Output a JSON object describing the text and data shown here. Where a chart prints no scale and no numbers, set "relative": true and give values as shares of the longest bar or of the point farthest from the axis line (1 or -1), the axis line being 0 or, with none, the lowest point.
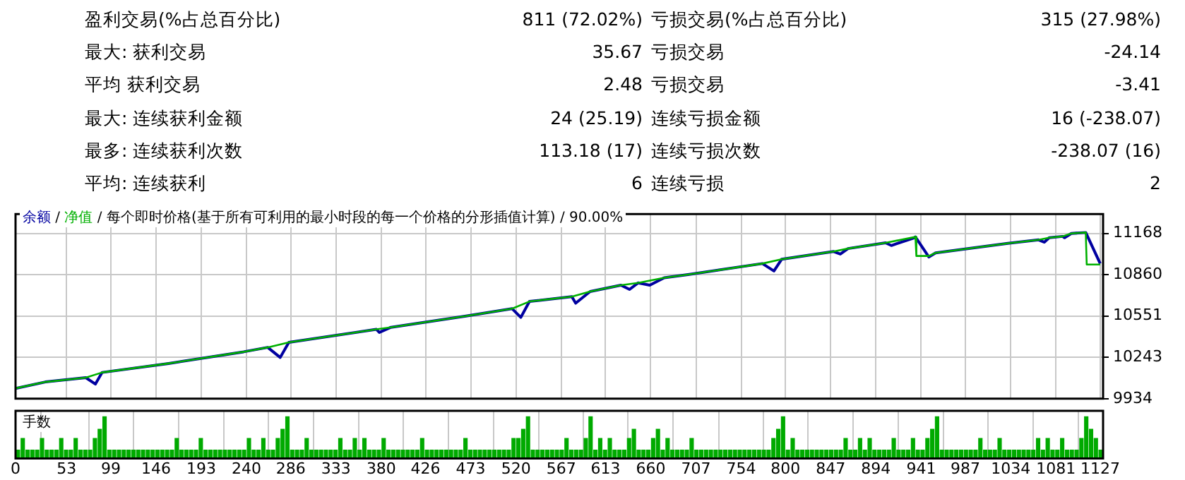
{
  "chart_data": [
    {
      "type": "other",
      "annotations": [
        "盈利交易(%占总百分比)",
        "811 (72.02%)",
        "亏损交易(%占总百分比)",
        "315 (27.98%)",
        "最大: 获利交易",
        "35.67",
        "亏损交易",
        "-24.14",
        "平均 获利交易",
        "2.48",
        "亏损交易",
        "-3.41",
        "最大: 连续获利金额",
        "24 (25.19)",
        "连续亏损金额",
        "16 (-238.07)",
        "最多: 连续获利次数",
        "113.18 (17)",
        "连续亏损次数",
        "-238.07 (16)",
        "平均: 连续获利",
        "6",
        "连续亏损",
        "2"
      ]
    },
    {
      "type": "line",
      "subtitle": "/ 每个即时价格(基于所有可利用的最小时段的每一个价格的分形插值计算) / 90.00%",
      "annotations": [
        "/"
      ],
      "legend": "top left",
      "grid": true,
      "tick_labels": "y",
      "xlim": [
        0,
        1130
      ],
      "xticks": [
        0,
        53,
        99,
        146,
        193,
        240,
        286,
        333,
        380,
        426,
        473,
        520,
        567,
        613,
        660,
        707,
        754,
        800,
        847,
        894,
        941,
        987,
        1034,
        1081,
        1127
      ],
      "ylim": [
        9934,
        11313
      ],
      "yticks": [
        9934,
        10243,
        10551,
        10860,
        11168
      ],
      "series": [
        {
          "name": "净值",
          "color": "#00b000",
          "x": [
            0,
            31,
            73,
            90,
            159,
            237,
            262,
            284,
            375,
            390,
            468,
            516,
            534,
            578,
            597,
            629,
            647,
            674,
            700,
            776,
            796,
            850,
            865,
            904,
            935,
            936,
            949,
            956,
            1031,
            1063,
            1074,
            1088,
            1097,
            1112,
            1113,
            1127
          ],
          "values": [
            10011,
            10059,
            10091,
            10130,
            10197,
            10284,
            10317,
            10355,
            10452,
            10467,
            10551,
            10606,
            10660,
            10696,
            10734,
            10782,
            10799,
            10837,
            10862,
            10943,
            10975,
            11033,
            11055,
            11098,
            11142,
            11000,
            11000,
            11023,
            11094,
            11120,
            11136,
            11146,
            11168,
            11175,
            10936,
            10936
          ]
        },
        {
          "name": "余额",
          "color": "#0000a0",
          "x": [
            0,
            31,
            73,
            83,
            90,
            159,
            237,
            262,
            275,
            284,
            375,
            378,
            390,
            468,
            516,
            525,
            534,
            578,
            582,
            597,
            629,
            638,
            647,
            659,
            674,
            700,
            776,
            788,
            796,
            850,
            857,
            865,
            904,
            910,
            934,
            935,
            949,
            956,
            1031,
            1063,
            1069,
            1074,
            1088,
            1090,
            1097,
            1112,
            1127
          ],
          "values": [
            10011,
            10059,
            10091,
            10043,
            10130,
            10197,
            10284,
            10317,
            10242,
            10355,
            10452,
            10429,
            10467,
            10551,
            10606,
            10541,
            10660,
            10696,
            10647,
            10734,
            10782,
            10750,
            10799,
            10782,
            10837,
            10862,
            10943,
            10888,
            10975,
            11033,
            11014,
            11055,
            11098,
            11078,
            11136,
            11142,
            10992,
            11023,
            11094,
            11120,
            11103,
            11136,
            11146,
            11136,
            11168,
            11175,
            10943
          ]
        }
      ]
    },
    {
      "type": "bar",
      "title": "手数",
      "relative": true,
      "grid": "x",
      "tick_labels": "x",
      "color": "#00aa00",
      "xlim": [
        0,
        1130
      ],
      "xticks": [
        0,
        53,
        99,
        146,
        193,
        240,
        286,
        333,
        380,
        426,
        473,
        520,
        567,
        613,
        660,
        707,
        754,
        800,
        847,
        894,
        941,
        987,
        1034,
        1081,
        1127
      ],
      "x": [
        2.5,
        7.5,
        12.5,
        17.5,
        22.5,
        27.5,
        32.5,
        37.5,
        42.5,
        47.5,
        52.5,
        57.5,
        62.5,
        67.5,
        72.5,
        77.5,
        82.5,
        87.5,
        92.5,
        97.5,
        102.5,
        107.5,
        112.5,
        117.5,
        122.5,
        127.5,
        132.5,
        137.5,
        142.5,
        147.5,
        152.5,
        157.5,
        162.5,
        167.5,
        172.5,
        177.5,
        182.5,
        187.5,
        192.5,
        197.5,
        202.5,
        207.5,
        212.5,
        217.5,
        222.5,
        227.5,
        232.5,
        237.5,
        242.5,
        247.5,
        252.5,
        257.5,
        262.5,
        267.5,
        272.5,
        277.5,
        282.5,
        287.5,
        292.5,
        297.5,
        302.5,
        307.5,
        312.5,
        317.5,
        322.5,
        327.5,
        332.5,
        337.5,
        342.5,
        347.5,
        352.5,
        357.5,
        362.5,
        367.5,
        372.5,
        377.5,
        382.5,
        387.5,
        392.5,
        397.5,
        402.5,
        407.5,
        412.5,
        417.5,
        422.5,
        427.5,
        432.5,
        437.5,
        442.5,
        447.5,
        452.5,
        457.5,
        462.5,
        467.5,
        472.5,
        477.5,
        482.5,
        487.5,
        492.5,
        497.5,
        502.5,
        507.5,
        512.5,
        517.5,
        522.5,
        527.5,
        532.5,
        537.5,
        542.5,
        547.5,
        552.5,
        557.5,
        562.5,
        567.5,
        572.5,
        577.5,
        582.5,
        587.5,
        592.5,
        597.5,
        602.5,
        607.5,
        612.5,
        617.5,
        622.5,
        627.5,
        632.5,
        637.5,
        642.5,
        647.5,
        652.5,
        657.5,
        662.5,
        667.5,
        672.5,
        677.5,
        682.5,
        687.5,
        692.5,
        697.5,
        702.5,
        707.5,
        712.5,
        717.5,
        722.5,
        727.5,
        732.5,
        737.5,
        742.5,
        747.5,
        752.5,
        757.5,
        762.5,
        767.5,
        772.5,
        777.5,
        782.5,
        787.5,
        792.5,
        797.5,
        802.5,
        807.5,
        812.5,
        817.5,
        822.5,
        827.5,
        832.5,
        837.5,
        842.5,
        847.5,
        852.5,
        857.5,
        862.5,
        867.5,
        872.5,
        877.5,
        882.5,
        887.5,
        892.5,
        897.5,
        902.5,
        907.5,
        912.5,
        917.5,
        922.5,
        927.5,
        932.5,
        937.5,
        942.5,
        947.5,
        952.5,
        957.5,
        962.5,
        967.5,
        972.5,
        977.5,
        982.5,
        987.5,
        992.5,
        997.5,
        1002.5,
        1007.5,
        1012.5,
        1017.5,
        1022.5,
        1027.5,
        1032.5,
        1037.5,
        1042.5,
        1047.5,
        1052.5,
        1057.5,
        1062.5,
        1067.5,
        1072.5,
        1077.5,
        1082.5,
        1087.5,
        1092.5,
        1097.5,
        1102.5,
        1107.5,
        1112.5,
        1117.5,
        1122.5,
        1127.5
      ],
      "values": [
        0.2,
        0.48,
        0.2,
        0.2,
        0.2,
        0.48,
        0.2,
        0.2,
        0.2,
        0.48,
        0.2,
        0.2,
        0.48,
        0.2,
        0.2,
        0.2,
        0.48,
        0.7,
        1,
        0.2,
        0.2,
        0.2,
        0.2,
        0.2,
        0.2,
        0.2,
        0.2,
        0.2,
        0.2,
        0.2,
        0.2,
        0.2,
        0.2,
        0.48,
        0.2,
        0.2,
        0.2,
        0.2,
        0.48,
        0.2,
        0.2,
        0.2,
        0.2,
        0.2,
        0.2,
        0.2,
        0.2,
        0.2,
        0.48,
        0.2,
        0.2,
        0.48,
        0.2,
        0.2,
        0.48,
        0.7,
        1,
        0.2,
        0.2,
        0.2,
        0.48,
        0.2,
        0.2,
        0.2,
        0.2,
        0.2,
        0.2,
        0.48,
        0.2,
        0.2,
        0.48,
        0.2,
        0.48,
        0.2,
        0.2,
        0.2,
        0.48,
        0.2,
        0.2,
        0.2,
        0.2,
        0.2,
        0.2,
        0.2,
        0.48,
        0.2,
        0.2,
        0.2,
        0.2,
        0.2,
        0.2,
        0.2,
        0.2,
        0.48,
        0.2,
        0.2,
        0.2,
        0.2,
        0.2,
        0.2,
        0.2,
        0.2,
        0.2,
        0.48,
        0.48,
        0.7,
        1,
        0.2,
        0.2,
        0.2,
        0.2,
        0.2,
        0.2,
        0.2,
        0.48,
        0.2,
        0.2,
        0.2,
        0.48,
        1,
        0.2,
        0.48,
        0.2,
        0.48,
        0.2,
        0.2,
        0.2,
        0.48,
        0.7,
        0.2,
        0.2,
        0.2,
        0.48,
        0.7,
        0.2,
        0.48,
        0.2,
        0.2,
        0.2,
        0.2,
        0.48,
        0.2,
        0.2,
        0.2,
        0.2,
        0.2,
        0.2,
        0.2,
        0.2,
        0.2,
        0.2,
        0.2,
        0.2,
        0.2,
        0.2,
        0.2,
        0.2,
        0.48,
        0.7,
        1,
        0.2,
        0.48,
        0.2,
        0.2,
        0.2,
        0.2,
        0.2,
        0.2,
        0.2,
        0.2,
        0.2,
        0.2,
        0.48,
        0.2,
        0.2,
        0.48,
        0.2,
        0.48,
        0.2,
        0.2,
        0.2,
        0.2,
        0.48,
        0.2,
        0.2,
        0.2,
        0.48,
        0.2,
        0.2,
        0.48,
        0.7,
        1,
        0.2,
        0.2,
        0.2,
        0.2,
        0.2,
        0.2,
        0.2,
        0.2,
        0.48,
        0.2,
        0.2,
        0.2,
        0.48,
        0.2,
        0.2,
        0.2,
        0.2,
        0.2,
        0.2,
        0.2,
        0.48,
        0.2,
        0.48,
        0.2,
        0.2,
        0.48,
        0.2,
        0.2,
        0.2,
        0.48,
        1,
        0.7,
        0.48,
        0.2
      ]
    }
  ]
}
